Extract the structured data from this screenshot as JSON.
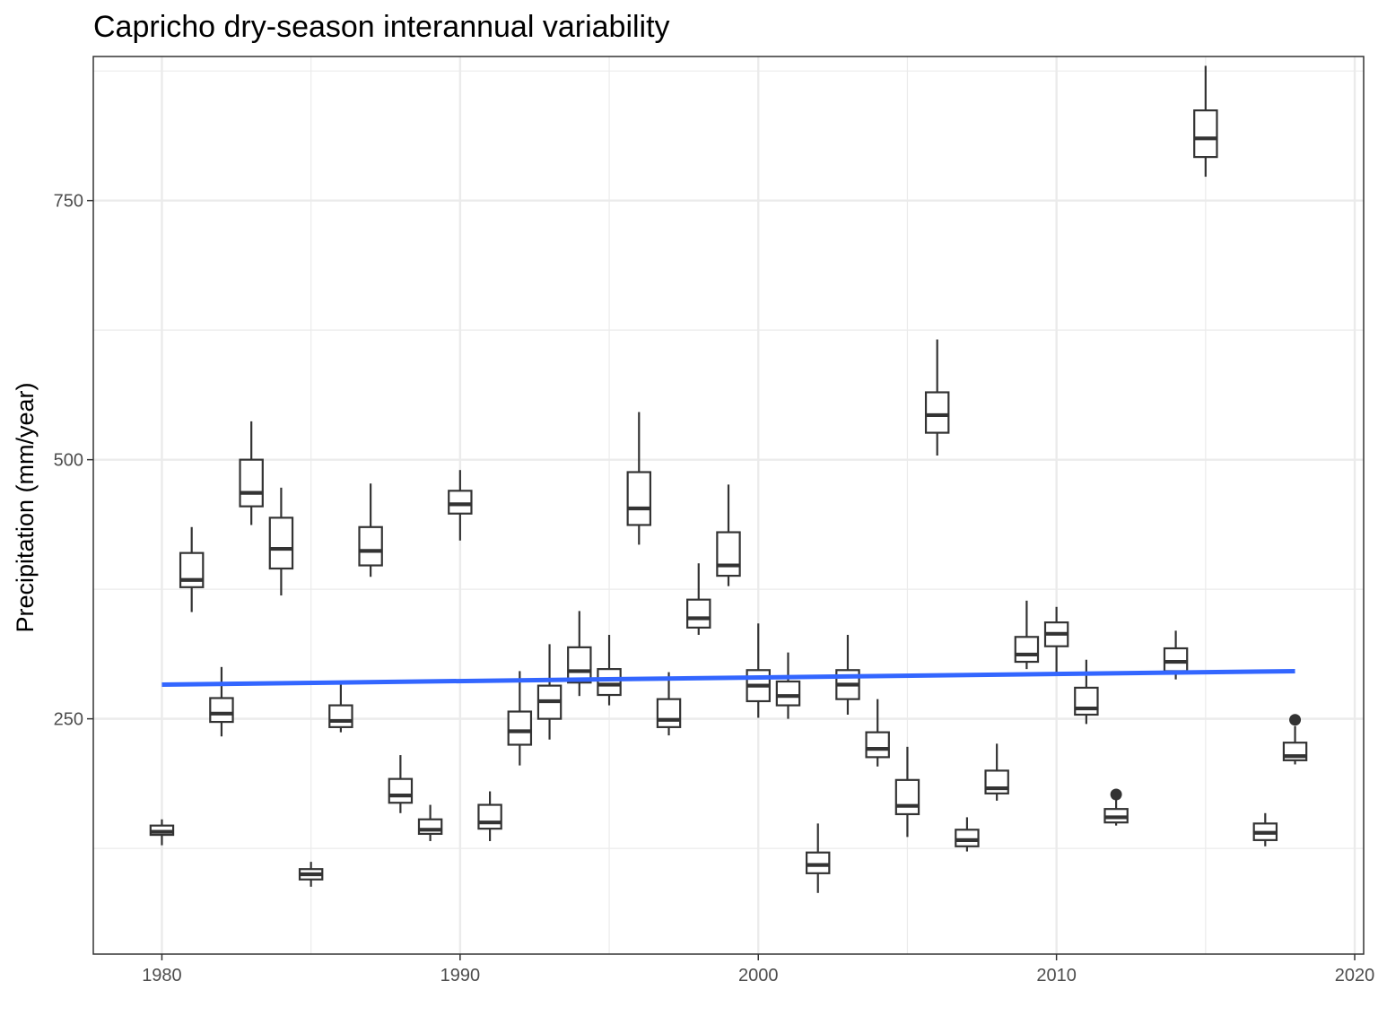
{
  "chart_data": {
    "type": "boxplot",
    "title": "Capricho dry-season interannual variability",
    "xlabel": "",
    "ylabel": "Precipitation (mm/year)",
    "xlim": [
      1977.7,
      2020.3
    ],
    "ylim": [
      23,
      889
    ],
    "x_ticks": [
      1980,
      1990,
      2000,
      2010,
      2020
    ],
    "y_ticks": [
      250,
      500,
      750
    ],
    "grid": true,
    "series": [
      {
        "values": [
          {
            "x": 1980,
            "lo": 128,
            "q1": 138,
            "med": 141,
            "q3": 147,
            "hi": 153,
            "outliers": []
          },
          {
            "x": 1981,
            "lo": 353,
            "q1": 377,
            "med": 384,
            "q3": 410,
            "hi": 435,
            "outliers": []
          },
          {
            "x": 1982,
            "lo": 233,
            "q1": 247,
            "med": 255,
            "q3": 270,
            "hi": 300,
            "outliers": []
          },
          {
            "x": 1983,
            "lo": 437,
            "q1": 455,
            "med": 468,
            "q3": 500,
            "hi": 537,
            "outliers": []
          },
          {
            "x": 1984,
            "lo": 369,
            "q1": 395,
            "med": 414,
            "q3": 444,
            "hi": 473,
            "outliers": []
          },
          {
            "x": 1985,
            "lo": 88,
            "q1": 95,
            "med": 100,
            "q3": 105,
            "hi": 112,
            "outliers": []
          },
          {
            "x": 1986,
            "lo": 237,
            "q1": 242,
            "med": 248,
            "q3": 263,
            "hi": 283,
            "outliers": []
          },
          {
            "x": 1987,
            "lo": 387,
            "q1": 398,
            "med": 412,
            "q3": 435,
            "hi": 477,
            "outliers": []
          },
          {
            "x": 1988,
            "lo": 159,
            "q1": 169,
            "med": 176,
            "q3": 192,
            "hi": 215,
            "outliers": []
          },
          {
            "x": 1989,
            "lo": 132,
            "q1": 139,
            "med": 143,
            "q3": 153,
            "hi": 167,
            "outliers": []
          },
          {
            "x": 1990,
            "lo": 422,
            "q1": 448,
            "med": 457,
            "q3": 470,
            "hi": 490,
            "outliers": []
          },
          {
            "x": 1991,
            "lo": 132,
            "q1": 144,
            "med": 150,
            "q3": 167,
            "hi": 180,
            "outliers": []
          },
          {
            "x": 1992,
            "lo": 205,
            "q1": 225,
            "med": 238,
            "q3": 257,
            "hi": 296,
            "outliers": []
          },
          {
            "x": 1993,
            "lo": 230,
            "q1": 250,
            "med": 267,
            "q3": 282,
            "hi": 322,
            "outliers": []
          },
          {
            "x": 1994,
            "lo": 272,
            "q1": 285,
            "med": 296,
            "q3": 319,
            "hi": 354,
            "outliers": []
          },
          {
            "x": 1995,
            "lo": 263,
            "q1": 273,
            "med": 283,
            "q3": 298,
            "hi": 331,
            "outliers": []
          },
          {
            "x": 1996,
            "lo": 418,
            "q1": 437,
            "med": 453,
            "q3": 488,
            "hi": 546,
            "outliers": []
          },
          {
            "x": 1997,
            "lo": 234,
            "q1": 242,
            "med": 249,
            "q3": 269,
            "hi": 295,
            "outliers": []
          },
          {
            "x": 1998,
            "lo": 331,
            "q1": 338,
            "med": 347,
            "q3": 365,
            "hi": 400,
            "outliers": []
          },
          {
            "x": 1999,
            "lo": 378,
            "q1": 388,
            "med": 398,
            "q3": 430,
            "hi": 476,
            "outliers": []
          },
          {
            "x": 2000,
            "lo": 251,
            "q1": 267,
            "med": 282,
            "q3": 297,
            "hi": 342,
            "outliers": []
          },
          {
            "x": 2001,
            "lo": 250,
            "q1": 263,
            "med": 272,
            "q3": 286,
            "hi": 314,
            "outliers": []
          },
          {
            "x": 2002,
            "lo": 82,
            "q1": 101,
            "med": 109,
            "q3": 121,
            "hi": 149,
            "outliers": []
          },
          {
            "x": 2003,
            "lo": 254,
            "q1": 269,
            "med": 283,
            "q3": 297,
            "hi": 331,
            "outliers": []
          },
          {
            "x": 2004,
            "lo": 204,
            "q1": 213,
            "med": 221,
            "q3": 237,
            "hi": 269,
            "outliers": []
          },
          {
            "x": 2005,
            "lo": 136,
            "q1": 158,
            "med": 166,
            "q3": 191,
            "hi": 223,
            "outliers": []
          },
          {
            "x": 2006,
            "lo": 504,
            "q1": 526,
            "med": 543,
            "q3": 565,
            "hi": 616,
            "outliers": []
          },
          {
            "x": 2007,
            "lo": 122,
            "q1": 127,
            "med": 133,
            "q3": 143,
            "hi": 155,
            "outliers": []
          },
          {
            "x": 2008,
            "lo": 171,
            "q1": 178,
            "med": 183,
            "q3": 200,
            "hi": 226,
            "outliers": []
          },
          {
            "x": 2009,
            "lo": 298,
            "q1": 305,
            "med": 312,
            "q3": 329,
            "hi": 364,
            "outliers": []
          },
          {
            "x": 2010,
            "lo": 295,
            "q1": 320,
            "med": 332,
            "q3": 343,
            "hi": 358,
            "outliers": []
          },
          {
            "x": 2011,
            "lo": 245,
            "q1": 254,
            "med": 260,
            "q3": 280,
            "hi": 307,
            "outliers": []
          },
          {
            "x": 2012,
            "lo": 147,
            "q1": 150,
            "med": 155,
            "q3": 163,
            "hi": 175,
            "outliers": [
              177
            ]
          },
          {
            "x": 2014,
            "lo": 288,
            "q1": 296,
            "med": 305,
            "q3": 318,
            "hi": 335,
            "outliers": []
          },
          {
            "x": 2015,
            "lo": 773,
            "q1": 792,
            "med": 810,
            "q3": 837,
            "hi": 880,
            "outliers": []
          },
          {
            "x": 2017,
            "lo": 127,
            "q1": 133,
            "med": 140,
            "q3": 149,
            "hi": 159,
            "outliers": []
          },
          {
            "x": 2018,
            "lo": 206,
            "q1": 210,
            "med": 214,
            "q3": 227,
            "hi": 243,
            "outliers": [
              249
            ]
          }
        ]
      }
    ],
    "trend_line": {
      "x": [
        1980,
        2018
      ],
      "y": [
        283,
        296
      ],
      "color": "#3366ff"
    },
    "colors": {
      "box_stroke": "#333333",
      "grid": "#ebebeb",
      "panel_border": "#333333",
      "trend": "#3366ff"
    }
  }
}
